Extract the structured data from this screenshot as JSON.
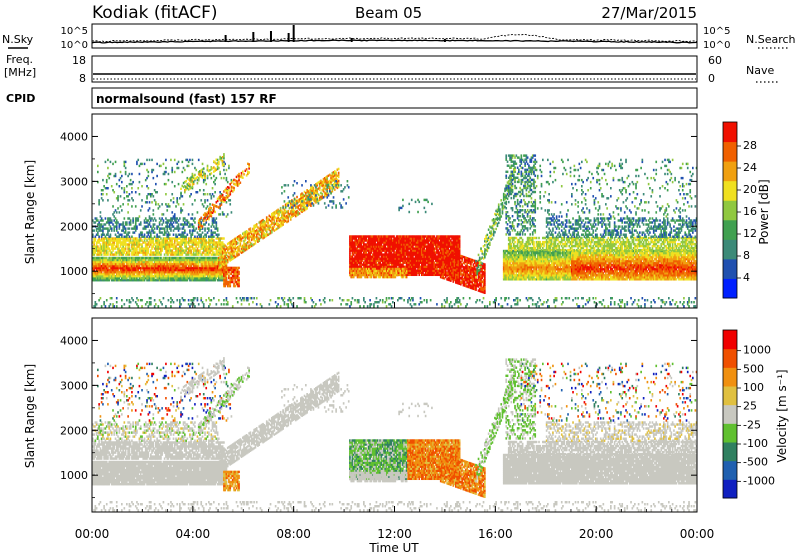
{
  "header": {
    "station": "Kodiak (fitACF)",
    "beam": "Beam 05",
    "date": "27/Mar/2015"
  },
  "noise_panel": {
    "left_label": "N.Sky",
    "right_label": "N.Search",
    "ticks_left": [
      "10^5",
      "10^0"
    ],
    "ticks_right": [
      "10^5",
      "10^0"
    ]
  },
  "freq_panel": {
    "left_label_1": "Freq.",
    "left_label_2": "[MHz]",
    "right_label": "Nave",
    "ticks_left": [
      "18",
      "8"
    ],
    "ticks_right": [
      "60",
      "0"
    ]
  },
  "cpid_panel": {
    "label": "CPID",
    "text": "normalsound (fast) 157 RF"
  },
  "chart_data": [
    {
      "type": "heatmap",
      "parameter": "Power",
      "ylabel": "Slant Range [km]",
      "yticks": [
        "4000",
        "3000",
        "2000",
        "1000"
      ],
      "ylim": [
        180,
        4500
      ],
      "colorbar_label": "Power [dB]",
      "colorbar_ticks": [
        "28",
        "24",
        "20",
        "16",
        "12",
        "8",
        "4"
      ],
      "colorscale": [
        "#0020ff",
        "#2050b0",
        "#3c8a78",
        "#40a050",
        "#90c840",
        "#f0e020",
        "#f0a010",
        "#f06000",
        "#f01000"
      ]
    },
    {
      "type": "heatmap",
      "parameter": "Velocity",
      "ylabel": "Slant Range [km]",
      "yticks": [
        "4000",
        "3000",
        "2000",
        "1000"
      ],
      "ylim": [
        180,
        4500
      ],
      "colorbar_label": "Velocity [m s⁻¹]",
      "colorbar_ticks": [
        "1000",
        "500",
        "100",
        "25",
        "-25",
        "-100",
        "-500",
        "-1000"
      ],
      "colorscale": [
        "#1020c0",
        "#2060b0",
        "#308060",
        "#60c030",
        "#c8c8c0",
        "#e0c040",
        "#f09010",
        "#f05000",
        "#f00000"
      ],
      "xlabel": "Time UT",
      "xticks": [
        "00:00",
        "04:00",
        "08:00",
        "12:00",
        "16:00",
        "20:00",
        "00:00"
      ],
      "xlim": [
        0,
        24
      ]
    }
  ]
}
